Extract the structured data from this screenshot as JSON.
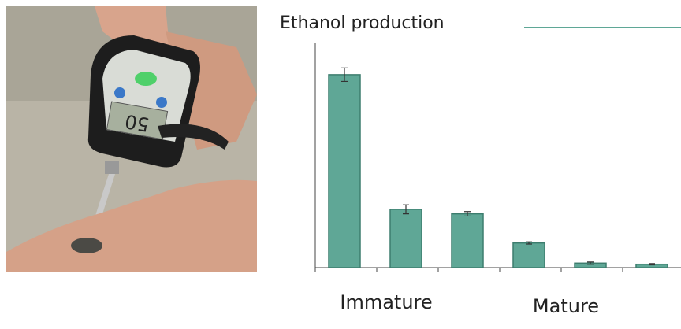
{
  "photo": {
    "display": "50"
  },
  "chart_data": {
    "type": "bar",
    "title": "Ethanol production",
    "categories": [
      null,
      null,
      null,
      null,
      null,
      null
    ],
    "values": [
      86,
      26,
      24,
      11,
      2,
      1.5
    ],
    "errors": [
      3,
      2,
      1,
      0.5,
      0.5,
      0.3
    ],
    "color": "#5fa796",
    "ylim": [
      0,
      100
    ],
    "group_labels": [
      "Immature",
      "Mature"
    ]
  }
}
